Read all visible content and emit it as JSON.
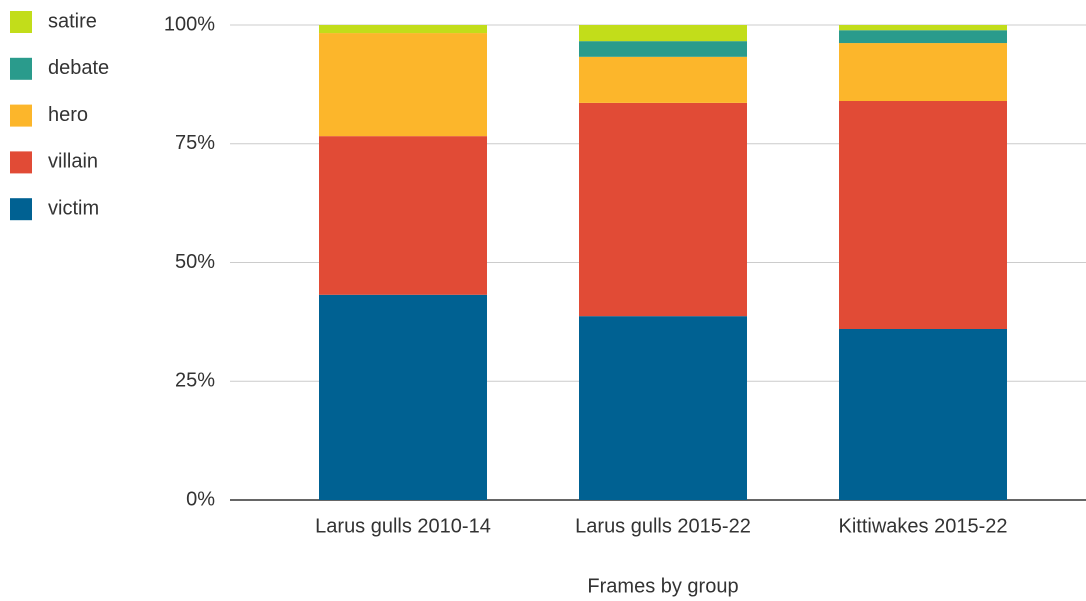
{
  "chart_data": {
    "type": "stacked-bar",
    "x_label": "Frames by group",
    "categories": [
      "Larus gulls 2010-14",
      "Larus gulls 2015-22",
      "Kittiwakes 2015-22"
    ],
    "series": [
      {
        "name": "victim",
        "color": "#006192",
        "values": [
          43.2,
          38.7,
          36.0
        ]
      },
      {
        "name": "villain",
        "color": "#e14b36",
        "values": [
          33.4,
          44.9,
          48.0
        ]
      },
      {
        "name": "hero",
        "color": "#fcb62b",
        "values": [
          21.7,
          9.7,
          12.2
        ]
      },
      {
        "name": "debate",
        "color": "#2a9b8c",
        "values": [
          0,
          3.3,
          2.7
        ]
      },
      {
        "name": "satire",
        "color": "#c2dd1a",
        "values": [
          1.7,
          3.4,
          1.1
        ]
      }
    ],
    "ylim": [
      0,
      100
    ],
    "yticks": [
      {
        "value": 0,
        "label": "0%"
      },
      {
        "value": 25,
        "label": "25%"
      },
      {
        "value": 50,
        "label": "50%"
      },
      {
        "value": 75,
        "label": "75%"
      },
      {
        "value": 100,
        "label": "100%"
      }
    ],
    "grid": true,
    "legend": "left"
  }
}
